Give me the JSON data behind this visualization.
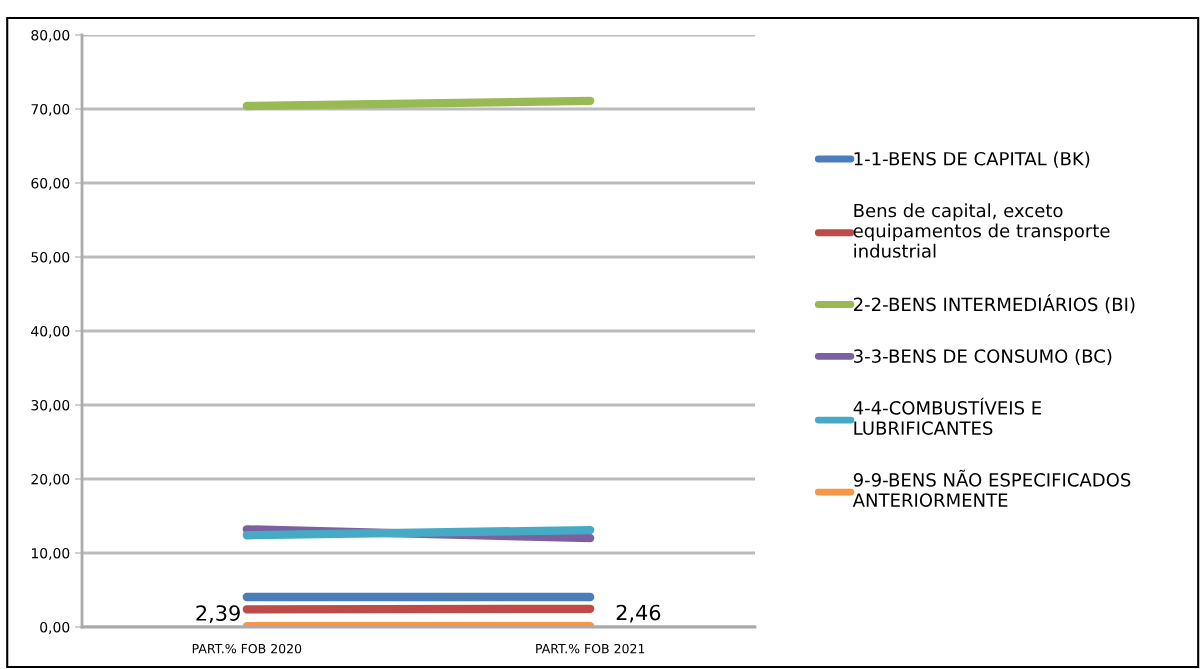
{
  "chart_data": {
    "type": "line",
    "categories": [
      "PART.% FOB 2020",
      "PART.% FOB 2021"
    ],
    "ylim": [
      0,
      80
    ],
    "yticks": [
      {
        "value": 0,
        "label": "0,00"
      },
      {
        "value": 10,
        "label": "10,00"
      },
      {
        "value": 20,
        "label": "20,00"
      },
      {
        "value": 30,
        "label": "30,00"
      },
      {
        "value": 40,
        "label": "40,00"
      },
      {
        "value": 50,
        "label": "50,00"
      },
      {
        "value": 60,
        "label": "60,00"
      },
      {
        "value": 70,
        "label": "70,00"
      },
      {
        "value": 80,
        "label": "80,00"
      }
    ],
    "grid": "y",
    "legend": "right",
    "marker": "none",
    "line_style": "solid",
    "series": [
      {
        "name": "1-1-BENS DE CAPITAL (BK)",
        "color": "#4a7ebb",
        "values": [
          4.05,
          4.05
        ]
      },
      {
        "name": "Bens de capital, exceto\nequipamentos de transporte\nindustrial",
        "color": "#be4b48",
        "values": [
          2.39,
          2.46
        ],
        "value_labels": [
          "2,39",
          "2,46"
        ]
      },
      {
        "name": "2-2-BENS INTERMEDIÁRIOS (BI)",
        "color": "#98b954",
        "values": [
          70.4,
          71.1
        ]
      },
      {
        "name": "3-3-BENS DE CONSUMO (BC)",
        "color": "#7d60a0",
        "values": [
          13.2,
          12.0
        ]
      },
      {
        "name": "4-4-COMBUSTÍVEIS E\nLUBRIFICANTES",
        "color": "#46aac5",
        "values": [
          12.4,
          13.1
        ]
      },
      {
        "name": "9-9-BENS NÃO ESPECIFICADOS\nANTERIORMENTE",
        "color": "#f79646",
        "values": [
          0.1,
          0.1
        ]
      }
    ]
  }
}
